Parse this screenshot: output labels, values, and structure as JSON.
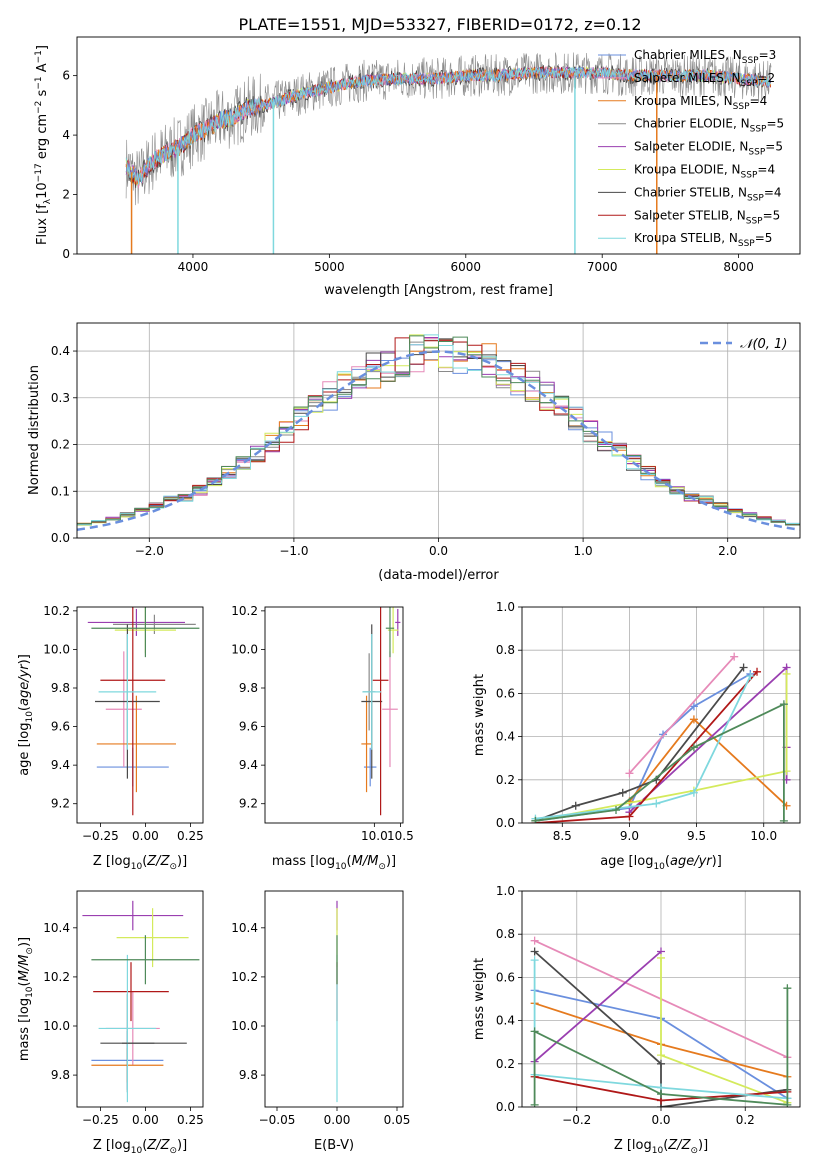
{
  "title": "PLATE=1551, MJD=53327, FIBERID=0172, z=0.12",
  "colors": {
    "Chabrier MILES": "#6a8fde",
    "Salpeter MILES": "#e68ab8",
    "Kroupa MILES": "#e57a1e",
    "Chabrier ELODIE": "#8a8a8a",
    "Salpeter ELODIE": "#9a3fb0",
    "Kroupa ELODIE": "#d4ea5c",
    "Chabrier STELIB": "#4a4a4a",
    "Salpeter STELIB": "#b01818",
    "Kroupa STELIB": "#7fd8de",
    "extra_green": "#4f8a5a",
    "gauss": "#6a8fde"
  },
  "chart_data": [
    {
      "id": "spectrum",
      "type": "line",
      "xlabel": "wavelength [Angstrom, rest frame]",
      "ylabel": "Flux [f_λ10^-17 erg cm^-2 s^-1 A^-1]",
      "xlim": [
        3150,
        8450
      ],
      "ylim": [
        0,
        7.3
      ],
      "xticks": [
        4000,
        5000,
        6000,
        7000,
        8000
      ],
      "yticks": [
        0,
        2,
        4,
        6
      ],
      "legend_position": "top-right",
      "legend": [
        {
          "label": "Chabrier MILES, N_SSP=3"
        },
        {
          "label": "Salpeter MILES, N_SSP=2"
        },
        {
          "label": "Kroupa MILES, N_SSP=4"
        },
        {
          "label": "Chabrier ELODIE, N_SSP=5"
        },
        {
          "label": "Salpeter ELODIE, N_SSP=5"
        },
        {
          "label": "Kroupa ELODIE, N_SSP=4"
        },
        {
          "label": "Chabrier STELIB, N_SSP=4"
        },
        {
          "label": "Salpeter STELIB, N_SSP=5"
        },
        {
          "label": "Kroupa STELIB, N_SSP=5"
        }
      ],
      "continuum": [
        [
          3500,
          3.0
        ],
        [
          3600,
          2.5
        ],
        [
          3700,
          3.1
        ],
        [
          3800,
          3.4
        ],
        [
          3900,
          3.6
        ],
        [
          4000,
          4.0
        ],
        [
          4100,
          4.2
        ],
        [
          4200,
          4.5
        ],
        [
          4300,
          4.6
        ],
        [
          4400,
          4.9
        ],
        [
          4500,
          5.0
        ],
        [
          4600,
          5.1
        ],
        [
          4800,
          5.4
        ],
        [
          5000,
          5.6
        ],
        [
          5200,
          5.8
        ],
        [
          5500,
          5.9
        ],
        [
          5800,
          5.9
        ],
        [
          6000,
          6.0
        ],
        [
          6200,
          6.0
        ],
        [
          6500,
          6.1
        ],
        [
          6800,
          6.1
        ],
        [
          7000,
          6.1
        ],
        [
          7200,
          6.0
        ],
        [
          7500,
          6.0
        ],
        [
          7800,
          6.0
        ],
        [
          8000,
          5.9
        ],
        [
          8200,
          5.8
        ]
      ],
      "absorption": [
        [
          3550,
          0
        ],
        [
          3890,
          0
        ],
        [
          4590,
          0
        ],
        [
          6800,
          0
        ],
        [
          7400,
          0
        ]
      ]
    },
    {
      "id": "residuals",
      "type": "line",
      "xlabel": "(data-model)/error",
      "ylabel": "Normed distribution",
      "xlim": [
        -2.5,
        2.5
      ],
      "ylim": [
        0,
        0.46
      ],
      "xticks": [
        -2,
        -1,
        0,
        1,
        2
      ],
      "yticks": [
        0.0,
        0.1,
        0.2,
        0.3,
        0.4
      ],
      "grid": true,
      "legend_position": "top-right",
      "gauss_label": "𝒩(0, 1)",
      "bins": [
        -2.5,
        2.5,
        50
      ]
    },
    {
      "id": "z-age",
      "type": "scatter",
      "xlabel": "Z [log10(Z/Z⊙)]",
      "ylabel": "age [log10(age/yr)]",
      "xlim": [
        -0.38,
        0.32
      ],
      "ylim": [
        9.1,
        10.22
      ],
      "xticks": [
        -0.25,
        0.0,
        0.25
      ],
      "yticks": [
        9.2,
        9.4,
        9.6,
        9.8,
        10.0,
        10.2
      ],
      "points": [
        {
          "c": "Chabrier MILES",
          "x": -0.07,
          "xe": 0.2,
          "y": 9.39,
          "ye": 0.1
        },
        {
          "c": "Salpeter MILES",
          "x": -0.12,
          "xe": 0.1,
          "y": 9.69,
          "ye": 0.3
        },
        {
          "c": "Kroupa MILES",
          "x": -0.05,
          "xe": 0.22,
          "y": 9.51,
          "ye": 0.25
        },
        {
          "c": "Chabrier ELODIE",
          "x": 0.05,
          "xe": 0.23,
          "y": 10.13,
          "ye": 0.05
        },
        {
          "c": "Salpeter ELODIE",
          "x": -0.05,
          "xe": 0.27,
          "y": 10.14,
          "ye": 0.07
        },
        {
          "c": "Kroupa ELODIE",
          "x": 0.0,
          "xe": 0.17,
          "y": 10.1,
          "ye": 0.12
        },
        {
          "c": "Chabrier STELIB",
          "x": -0.1,
          "xe": 0.18,
          "y": 9.73,
          "ye": 0.4
        },
        {
          "c": "Salpeter STELIB",
          "x": -0.07,
          "xe": 0.18,
          "y": 9.84,
          "ye": 0.7
        },
        {
          "c": "Kroupa STELIB",
          "x": -0.1,
          "xe": 0.16,
          "y": 9.78,
          "ye": 0.3
        },
        {
          "c": "extra_green",
          "x": 0.0,
          "xe": 0.3,
          "y": 10.11,
          "ye": 0.15
        }
      ]
    },
    {
      "id": "mass-age",
      "type": "scatter",
      "xlabel": "mass [log10(M/M⊙)]",
      "ylabel": "",
      "xlim": [
        7.9,
        10.55
      ],
      "ylim": [
        9.1,
        10.22
      ],
      "xticks": [
        8.0,
        8.5,
        9.0,
        9.5,
        10.0,
        10.5
      ],
      "yticks": [
        9.2,
        9.4,
        9.6,
        9.8,
        10.0,
        10.2
      ],
      "xticklabels": [
        "10.0",
        "10.5"
      ],
      "points": [
        {
          "c": "Chabrier MILES",
          "x": 9.92,
          "xe": 0.12,
          "y": 9.39,
          "ye": 0.1
        },
        {
          "c": "Salpeter MILES",
          "x": 10.3,
          "xe": 0.15,
          "y": 9.69,
          "ye": 0.3
        },
        {
          "c": "Kroupa MILES",
          "x": 9.85,
          "xe": 0.1,
          "y": 9.51,
          "ye": 0.25
        },
        {
          "c": "Chabrier ELODIE",
          "x": 9.9,
          "xe": 0.12,
          "y": 9.78,
          "ye": 0.2
        },
        {
          "c": "Salpeter ELODIE",
          "x": 10.45,
          "xe": 0.05,
          "y": 10.14,
          "ye": 0.07
        },
        {
          "c": "Kroupa ELODIE",
          "x": 10.36,
          "xe": 0.1,
          "y": 10.1,
          "ye": 0.12
        },
        {
          "c": "Chabrier STELIB",
          "x": 9.95,
          "xe": 0.2,
          "y": 9.73,
          "ye": 0.4
        },
        {
          "c": "Salpeter STELIB",
          "x": 10.12,
          "xe": 0.15,
          "y": 9.84,
          "ye": 0.7
        },
        {
          "c": "Kroupa STELIB",
          "x": 9.95,
          "xe": 0.18,
          "y": 9.78,
          "ye": 0.3
        },
        {
          "c": "extra_green",
          "x": 10.3,
          "xe": 0.08,
          "y": 10.11,
          "ye": 0.15
        }
      ]
    },
    {
      "id": "age-weight",
      "type": "line",
      "xlabel": "age [log10(age/yr)]",
      "ylabel": "mass weight",
      "xlim": [
        8.2,
        10.27
      ],
      "ylim": [
        0,
        1.0
      ],
      "xticks": [
        8.5,
        9.0,
        9.5,
        10.0
      ],
      "yticks": [
        0.0,
        0.2,
        0.4,
        0.6,
        0.8,
        1.0
      ],
      "grid": true,
      "series": [
        {
          "c": "Chabrier MILES",
          "x": [
            8.3,
            9.0,
            9.25,
            9.48,
            9.9
          ],
          "y": [
            0.01,
            0.07,
            0.41,
            0.54,
            0.69
          ]
        },
        {
          "c": "Salpeter MILES",
          "x": [
            9.0,
            9.78
          ],
          "y": [
            0.23,
            0.77
          ]
        },
        {
          "c": "Kroupa MILES",
          "x": [
            9.0,
            9.48,
            10.17
          ],
          "y": [
            0.1,
            0.48,
            0.08
          ]
        },
        {
          "c": "Salpeter ELODIE",
          "x": [
            9.0,
            10.17,
            10.17,
            10.17
          ],
          "y": [
            0.05,
            0.72,
            0.35,
            0.2
          ]
        },
        {
          "c": "Kroupa ELODIE",
          "x": [
            8.3,
            9.48,
            10.17,
            10.17
          ],
          "y": [
            0.01,
            0.15,
            0.24,
            0.69
          ]
        },
        {
          "c": "Chabrier STELIB",
          "x": [
            8.3,
            8.6,
            8.95,
            9.2,
            9.85
          ],
          "y": [
            0.01,
            0.08,
            0.14,
            0.2,
            0.72
          ]
        },
        {
          "c": "Salpeter STELIB",
          "x": [
            8.3,
            9.0,
            9.95
          ],
          "y": [
            0.0,
            0.03,
            0.7
          ]
        },
        {
          "c": "Kroupa STELIB",
          "x": [
            8.3,
            9.2,
            9.48,
            9.9
          ],
          "y": [
            0.02,
            0.09,
            0.14,
            0.68
          ]
        },
        {
          "c": "extra_green",
          "x": [
            8.3,
            8.9,
            9.48,
            10.15,
            10.15
          ],
          "y": [
            0.01,
            0.06,
            0.35,
            0.55,
            0.01
          ]
        }
      ]
    },
    {
      "id": "z-mass",
      "type": "scatter",
      "xlabel": "Z [log10(Z/Z⊙)]",
      "ylabel": "mass [log10(M/M⊙)]",
      "xlim": [
        -0.38,
        0.32
      ],
      "ylim": [
        9.67,
        10.55
      ],
      "xticks": [
        -0.25,
        0.0,
        0.25
      ],
      "yticks": [
        9.8,
        10.0,
        10.2,
        10.4
      ],
      "points": [
        {
          "c": "Chabrier MILES",
          "x": -0.1,
          "xe": 0.2,
          "y": 9.86,
          "ye": 0.12
        },
        {
          "c": "Salpeter MILES",
          "x": -0.07,
          "xe": 0.15,
          "y": 9.99,
          "ye": 0.15
        },
        {
          "c": "Kroupa MILES",
          "x": -0.1,
          "xe": 0.2,
          "y": 9.84,
          "ye": 0.07
        },
        {
          "c": "Salpeter ELODIE",
          "x": -0.07,
          "xe": 0.28,
          "y": 10.45,
          "ye": 0.06
        },
        {
          "c": "Kroupa ELODIE",
          "x": 0.04,
          "xe": 0.2,
          "y": 10.36,
          "ye": 0.12
        },
        {
          "c": "Chabrier STELIB",
          "x": -0.1,
          "xe": 0.15,
          "y": 9.93,
          "ye": 0.2
        },
        {
          "c": "Salpeter STELIB",
          "x": -0.08,
          "xe": 0.21,
          "y": 10.14,
          "ye": 0.12
        },
        {
          "c": "Kroupa STELIB",
          "x": -0.1,
          "xe": 0.16,
          "y": 9.99,
          "ye": 0.3
        },
        {
          "c": "extra_green",
          "x": 0.0,
          "xe": 0.3,
          "y": 10.27,
          "ye": 0.1
        },
        {
          "c": "Chabrier STELIB",
          "x": 0.05,
          "xe": 0.18,
          "y": 9.93,
          "ye": 0.0
        }
      ]
    },
    {
      "id": "ebv-mass",
      "type": "scatter",
      "xlabel": "E(B-V)",
      "ylabel": "",
      "xlim": [
        -0.06,
        0.055
      ],
      "ylim": [
        9.67,
        10.55
      ],
      "xticks": [
        -0.05,
        0.0,
        0.05
      ],
      "yticks": [
        9.8,
        10.0,
        10.2,
        10.4
      ],
      "points": [
        {
          "c": "Salpeter ELODIE",
          "x": 0.0,
          "xe": 0.0,
          "y": 10.45,
          "ye": 0.06
        },
        {
          "c": "Kroupa ELODIE",
          "x": 0.0,
          "xe": 0.0,
          "y": 10.36,
          "ye": 0.12
        },
        {
          "c": "Salpeter STELIB",
          "x": 0.0,
          "xe": 0.0,
          "y": 10.14,
          "ye": 0.12
        },
        {
          "c": "Kroupa STELIB",
          "x": 0.0,
          "xe": 0.0,
          "y": 9.99,
          "ye": 0.3
        },
        {
          "c": "extra_green",
          "x": 0.0,
          "xe": 0.0,
          "y": 10.27,
          "ye": 0.1
        }
      ]
    },
    {
      "id": "z-weight",
      "type": "line",
      "xlabel": "Z [log10(Z/Z⊙)]",
      "ylabel": "mass weight",
      "xlim": [
        -0.33,
        0.33
      ],
      "ylim": [
        0,
        1.0
      ],
      "xticks": [
        -0.2,
        0.0,
        0.2
      ],
      "yticks": [
        0.0,
        0.2,
        0.4,
        0.6,
        0.8,
        1.0
      ],
      "grid": true,
      "series": [
        {
          "c": "Chabrier MILES",
          "x": [
            -0.3,
            0.0,
            0.3
          ],
          "y": [
            0.54,
            0.41,
            0.04
          ]
        },
        {
          "c": "Salpeter MILES",
          "x": [
            -0.3,
            0.3
          ],
          "y": [
            0.77,
            0.23
          ]
        },
        {
          "c": "Kroupa MILES",
          "x": [
            -0.3,
            0.0,
            0.3
          ],
          "y": [
            0.48,
            0.29,
            0.14
          ]
        },
        {
          "c": "Salpeter ELODIE",
          "x": [
            -0.3,
            0.0
          ],
          "y": [
            0.21,
            0.72
          ]
        },
        {
          "c": "Kroupa ELODIE",
          "x": [
            0.0,
            0.0,
            0.3
          ],
          "y": [
            0.69,
            0.24,
            0.02
          ]
        },
        {
          "c": "Chabrier STELIB",
          "x": [
            -0.3,
            0.0,
            0.0,
            0.3
          ],
          "y": [
            0.72,
            0.2,
            0.0,
            0.08
          ]
        },
        {
          "c": "Salpeter STELIB",
          "x": [
            -0.3,
            0.0,
            0.3
          ],
          "y": [
            0.14,
            0.03,
            0.07
          ]
        },
        {
          "c": "Kroupa STELIB",
          "x": [
            -0.3,
            -0.3,
            0.0,
            0.3
          ],
          "y": [
            0.68,
            0.15,
            0.09,
            0.04
          ]
        },
        {
          "c": "extra_green",
          "x": [
            -0.3,
            -0.3,
            0.0,
            0.3,
            0.3
          ],
          "y": [
            0.01,
            0.35,
            0.06,
            0.01,
            0.55
          ]
        }
      ]
    }
  ]
}
